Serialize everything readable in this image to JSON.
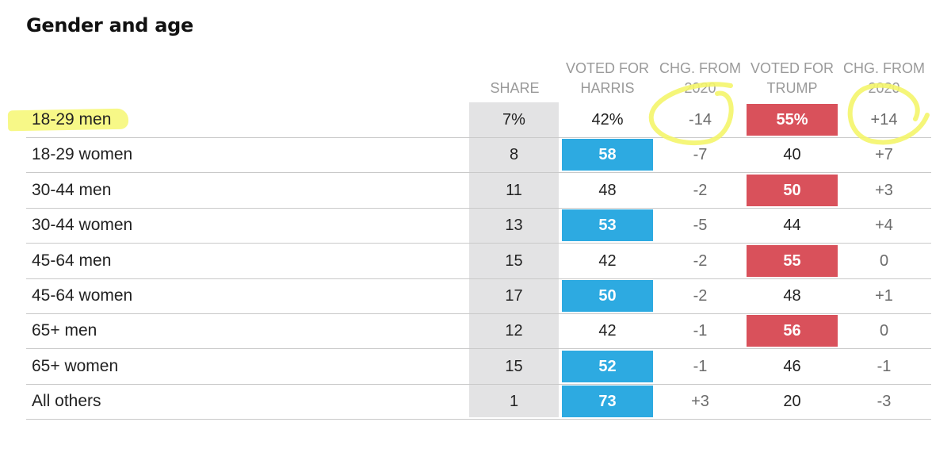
{
  "chart_data": {
    "type": "table",
    "title": "Gender and age",
    "columns": [
      {
        "key": "share",
        "lines": [
          "SHARE"
        ]
      },
      {
        "key": "harris",
        "lines": [
          "VOTED FOR",
          "HARRIS"
        ]
      },
      {
        "key": "harris_chg",
        "lines": [
          "CHG. FROM",
          "2020"
        ]
      },
      {
        "key": "trump",
        "lines": [
          "VOTED FOR",
          "TRUMP"
        ]
      },
      {
        "key": "trump_chg",
        "lines": [
          "CHG. FROM",
          "2020"
        ]
      }
    ],
    "rows": [
      {
        "label": "18-29 men",
        "share": "7%",
        "harris": "42%",
        "harris_chg": "-14",
        "trump": "55%",
        "trump_chg": "+14",
        "winner": "trump"
      },
      {
        "label": "18-29 women",
        "share": "8",
        "harris": "58",
        "harris_chg": "-7",
        "trump": "40",
        "trump_chg": "+7",
        "winner": "harris"
      },
      {
        "label": "30-44 men",
        "share": "11",
        "harris": "48",
        "harris_chg": "-2",
        "trump": "50",
        "trump_chg": "+3",
        "winner": "trump"
      },
      {
        "label": "30-44 women",
        "share": "13",
        "harris": "53",
        "harris_chg": "-5",
        "trump": "44",
        "trump_chg": "+4",
        "winner": "harris"
      },
      {
        "label": "45-64 men",
        "share": "15",
        "harris": "42",
        "harris_chg": "-2",
        "trump": "55",
        "trump_chg": "0",
        "winner": "trump"
      },
      {
        "label": "45-64 women",
        "share": "17",
        "harris": "50",
        "harris_chg": "-2",
        "trump": "48",
        "trump_chg": "+1",
        "winner": "harris"
      },
      {
        "label": "65+ men",
        "share": "12",
        "harris": "42",
        "harris_chg": "-1",
        "trump": "56",
        "trump_chg": "0",
        "winner": "trump"
      },
      {
        "label": "65+ women",
        "share": "15",
        "harris": "52",
        "harris_chg": "-1",
        "trump": "46",
        "trump_chg": "-1",
        "winner": "harris"
      },
      {
        "label": "All others",
        "share": "1",
        "harris": "73",
        "harris_chg": "+3",
        "trump": "20",
        "trump_chg": "-3",
        "winner": "harris"
      }
    ],
    "colors": {
      "harris": "#2daae1",
      "trump": "#d9515b",
      "share_column": "#e3e3e4",
      "highlight": "#f6f77a"
    },
    "annotations": {
      "highlighted_row": "18-29 men",
      "circled_cells": [
        "harris_chg",
        "trump_chg"
      ]
    }
  }
}
